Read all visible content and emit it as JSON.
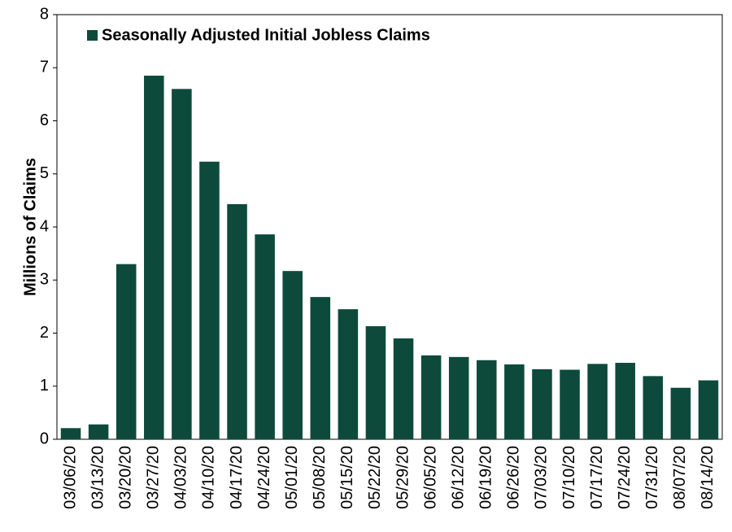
{
  "chart_data": {
    "type": "bar",
    "categories": [
      "03/06/20",
      "03/13/20",
      "03/20/20",
      "03/27/20",
      "04/03/20",
      "04/10/20",
      "04/17/20",
      "04/24/20",
      "05/01/20",
      "05/08/20",
      "05/15/20",
      "05/22/20",
      "05/29/20",
      "06/05/20",
      "06/12/20",
      "06/19/20",
      "06/26/20",
      "07/03/20",
      "07/10/20",
      "07/17/20",
      "07/24/20",
      "07/31/20",
      "08/07/20",
      "08/14/20"
    ],
    "series": [
      {
        "name": "Seasonally Adjusted Initial Jobless Claims",
        "color": "#0d4a3c",
        "values": [
          0.21,
          0.28,
          3.3,
          6.85,
          6.6,
          5.23,
          4.43,
          3.86,
          3.17,
          2.68,
          2.45,
          2.13,
          1.9,
          1.58,
          1.55,
          1.49,
          1.41,
          1.32,
          1.31,
          1.42,
          1.44,
          1.19,
          0.97,
          1.11
        ]
      }
    ],
    "ylabel": "Millions of Claims",
    "ylim": [
      0,
      8
    ],
    "yticks": [
      0,
      1,
      2,
      3,
      4,
      5,
      6,
      7,
      8
    ],
    "legend": "upper left"
  }
}
